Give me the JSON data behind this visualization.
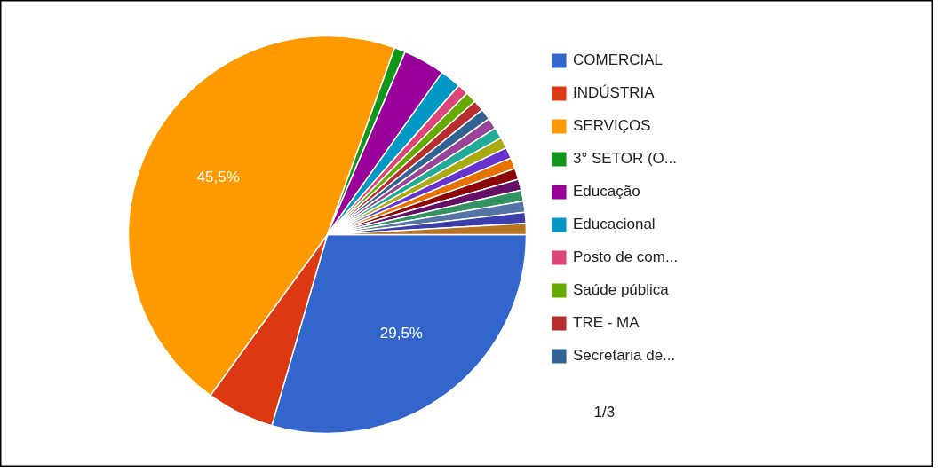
{
  "chart_data": {
    "type": "pie",
    "categories": [
      "COMERCIAL",
      "INDÚSTRIA",
      "SERVIÇOS",
      "3° SETOR (O...",
      "Educação",
      "Educacional",
      "Posto de com...",
      "Saúde pública",
      "TRE - MA",
      "Secretaria de...",
      null,
      null,
      null,
      null,
      null,
      null,
      null,
      null,
      null,
      null,
      null
    ],
    "values": [
      29.5,
      5.5,
      45.5,
      0.9,
      3.4,
      1.7,
      0.9,
      0.9,
      0.9,
      0.9,
      0.9,
      0.9,
      0.9,
      0.9,
      0.9,
      0.9,
      0.9,
      0.9,
      0.9,
      0.9,
      0.9
    ],
    "colors": [
      "#3366cc",
      "#dc3912",
      "#ff9900",
      "#109618",
      "#990099",
      "#0099c6",
      "#dd4477",
      "#66aa00",
      "#b82e2e",
      "#316395",
      "#994499",
      "#22aa99",
      "#aaaa11",
      "#6633cc",
      "#e67300",
      "#8b0707",
      "#651067",
      "#329262",
      "#5574a6",
      "#3b3eac",
      "#b77322"
    ],
    "value_labels": [
      "29,5%",
      null,
      "45,5%",
      null,
      null,
      null,
      null,
      null,
      null,
      null,
      null,
      null,
      null,
      null,
      null,
      null,
      null,
      null,
      null,
      null,
      null
    ],
    "legend": "right",
    "annotations": [
      "1/3"
    ]
  }
}
